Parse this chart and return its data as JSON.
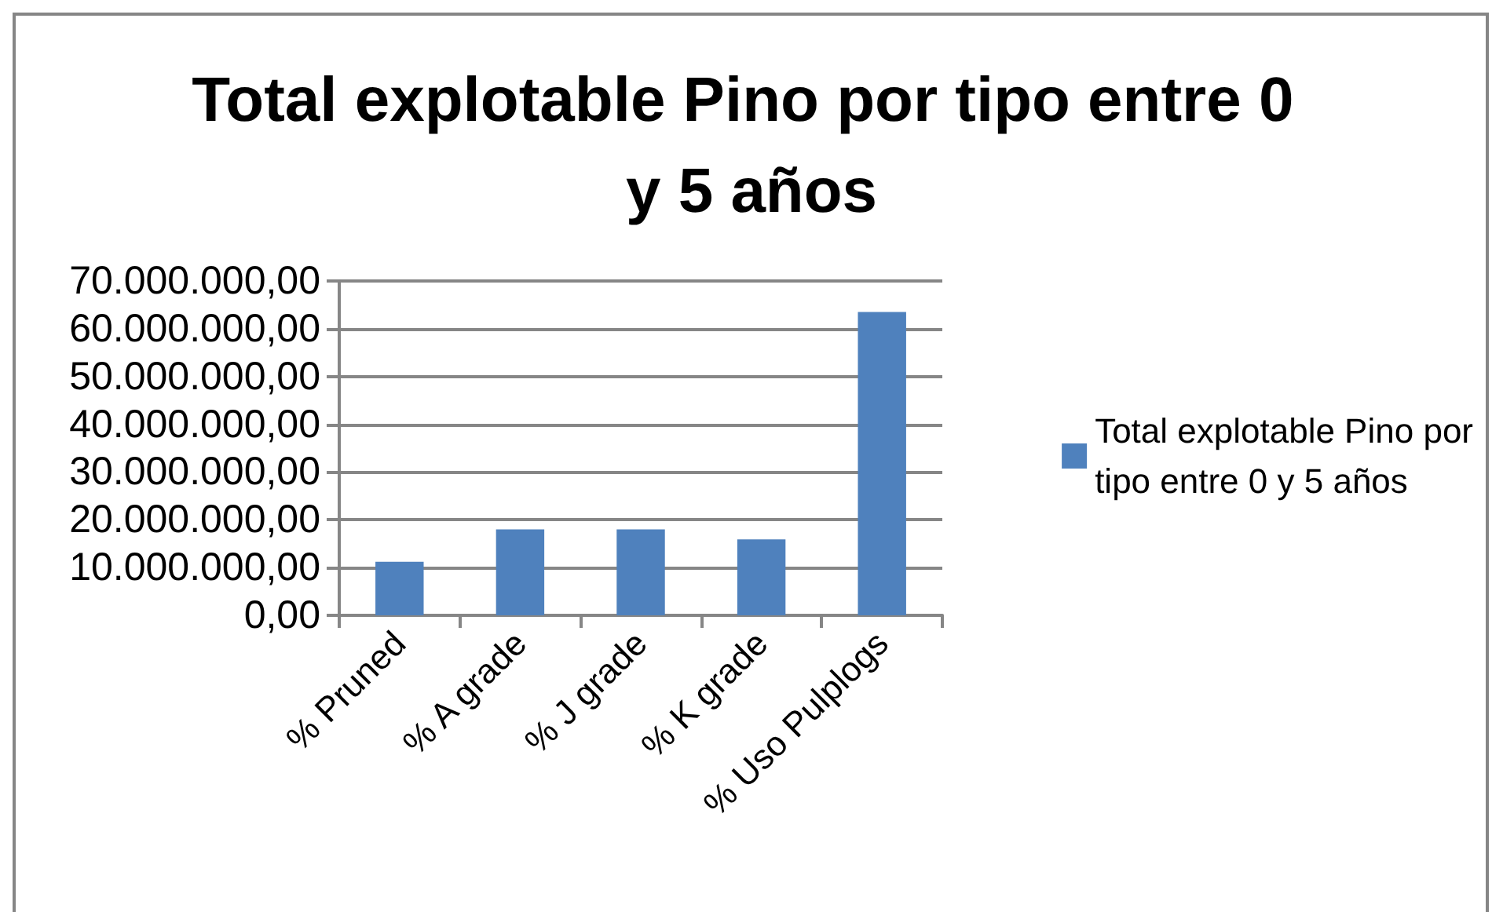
{
  "chart_data": {
    "type": "bar",
    "title": "Total explotable Pino por tipo entre 0 y 5 años",
    "categories": [
      "% Pruned",
      "% A grade",
      "% J grade",
      "% K grade",
      "% Uso Pulplogs"
    ],
    "series": [
      {
        "name": "Total explotable Pino por tipo entre 0 y 5 años",
        "color": "#4f81bd",
        "values": [
          11200000,
          18000000,
          18000000,
          15900000,
          63500000
        ]
      }
    ],
    "ylim": [
      0,
      70000000
    ],
    "yticks": [
      {
        "value": 0,
        "label": "0,00"
      },
      {
        "value": 10000000,
        "label": "10.000.000,00"
      },
      {
        "value": 20000000,
        "label": "20.000.000,00"
      },
      {
        "value": 30000000,
        "label": "30.000.000,00"
      },
      {
        "value": 40000000,
        "label": "40.000.000,00"
      },
      {
        "value": 50000000,
        "label": "50.000.000,00"
      },
      {
        "value": 60000000,
        "label": "60.000.000,00"
      },
      {
        "value": 70000000,
        "label": "70.000.000,00"
      }
    ],
    "grid": "y",
    "legend": "right"
  }
}
